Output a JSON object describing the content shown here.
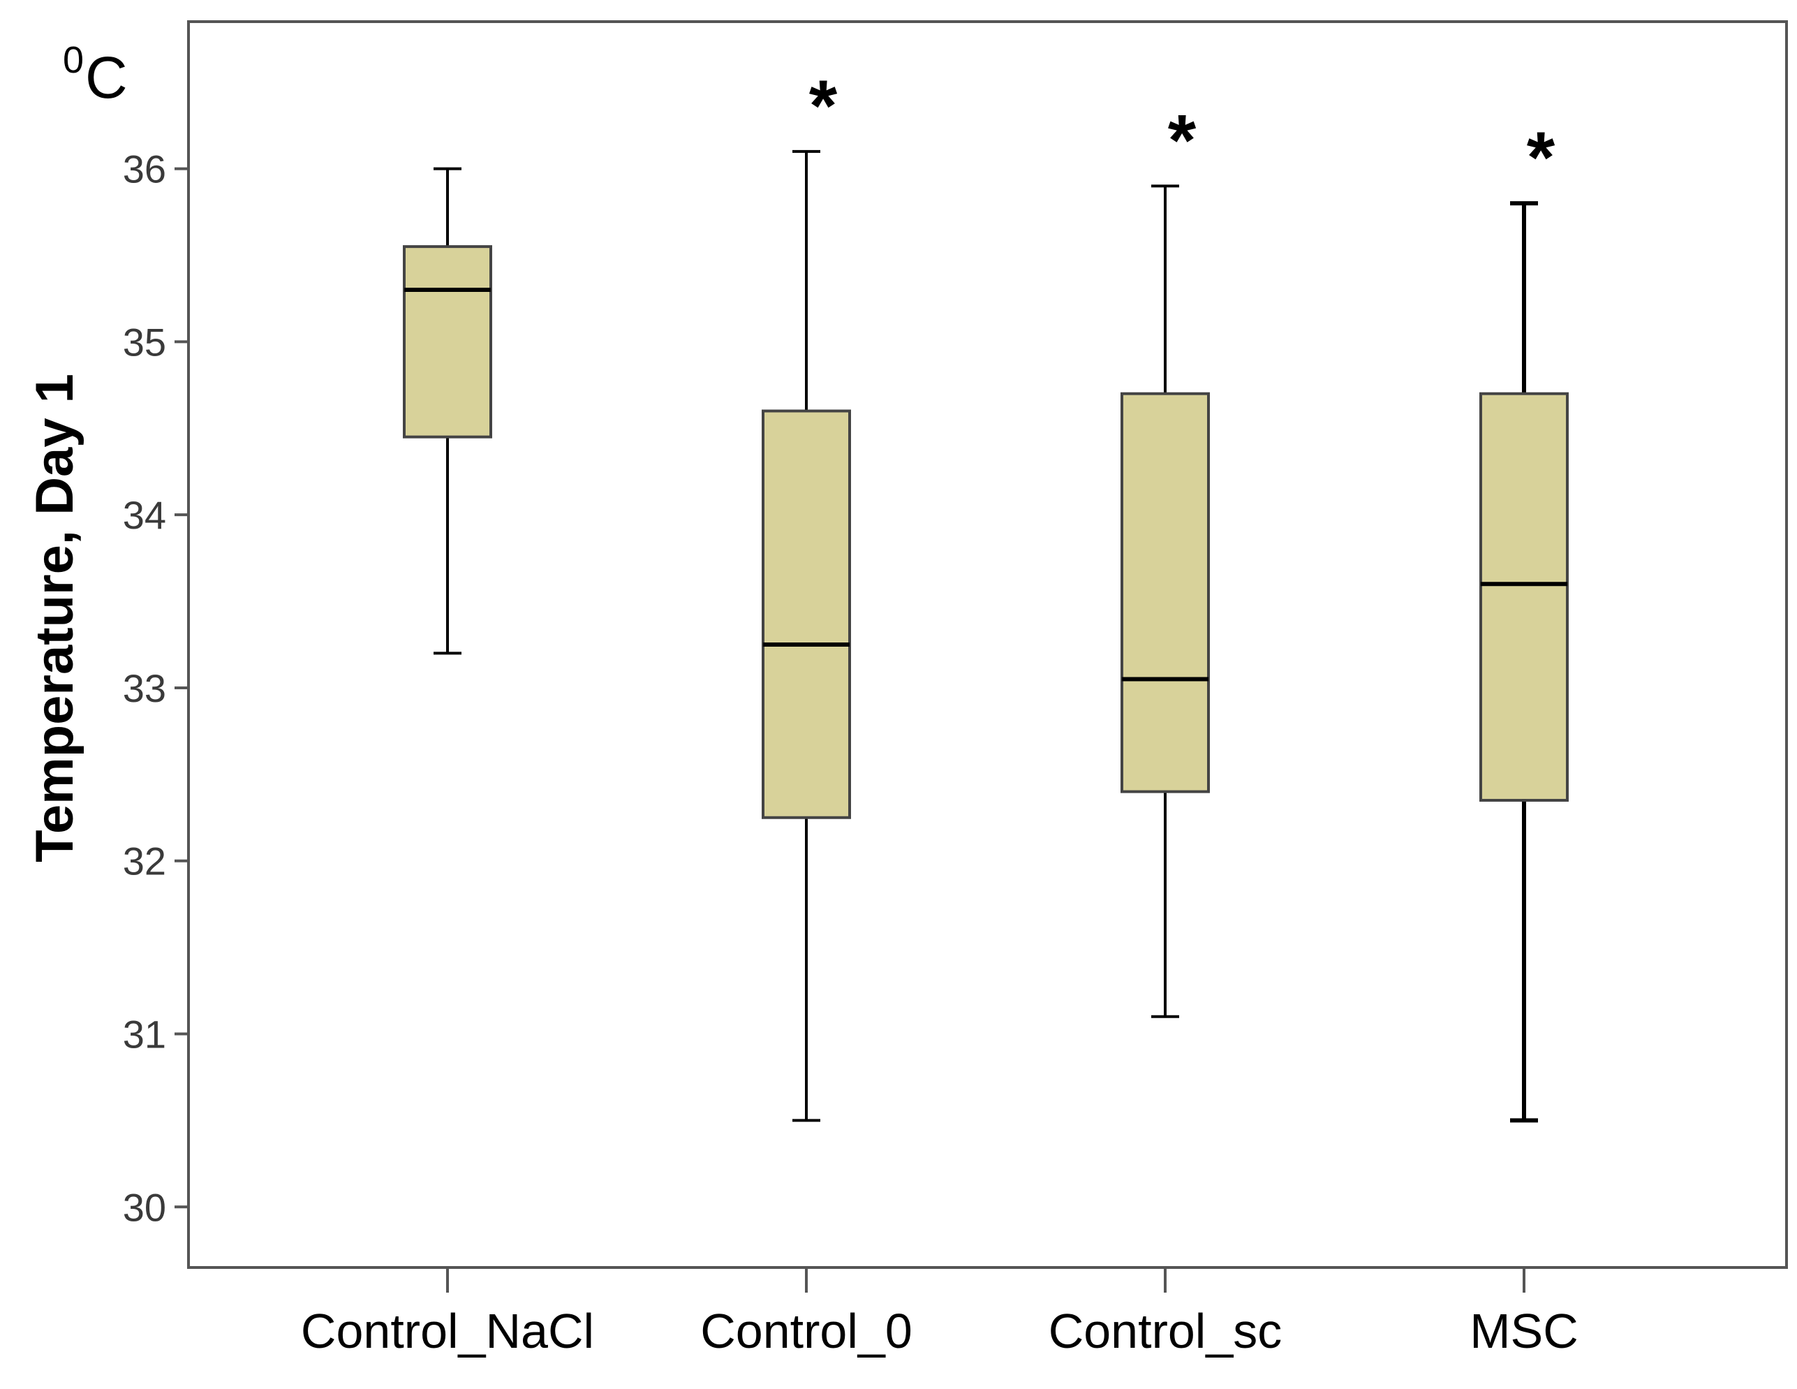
{
  "chart_data": {
    "type": "boxplot",
    "title": "",
    "xlabel": "",
    "ylabel": "Temperature, Day 1",
    "unit_superscript": "0",
    "unit": "C",
    "ylim": [
      29.65,
      36.85
    ],
    "yticks": [
      30,
      31,
      32,
      33,
      34,
      35,
      36
    ],
    "ytick_labels": [
      "30",
      "31",
      "32",
      "33",
      "34",
      "35",
      "36"
    ],
    "categories": [
      "Control_NaCl",
      "Control_0",
      "Control_sc",
      "MSC"
    ],
    "boxes": [
      {
        "name": "Control_NaCl",
        "min": 33.2,
        "q1": 34.45,
        "median": 35.3,
        "q3": 35.55,
        "max": 36.0,
        "marker": ""
      },
      {
        "name": "Control_0",
        "min": 30.5,
        "q1": 32.25,
        "median": 33.25,
        "q3": 34.6,
        "max": 36.1,
        "marker": "*"
      },
      {
        "name": "Control_sc",
        "min": 31.1,
        "q1": 32.4,
        "median": 33.05,
        "q3": 34.7,
        "max": 35.9,
        "marker": "*"
      },
      {
        "name": "MSC",
        "min": 30.5,
        "q1": 32.35,
        "median": 33.6,
        "q3": 34.7,
        "max": 35.8,
        "marker": "*"
      }
    ],
    "box_color": "#d8d29a",
    "line_color": "#000000",
    "frame_color": "#555555"
  }
}
